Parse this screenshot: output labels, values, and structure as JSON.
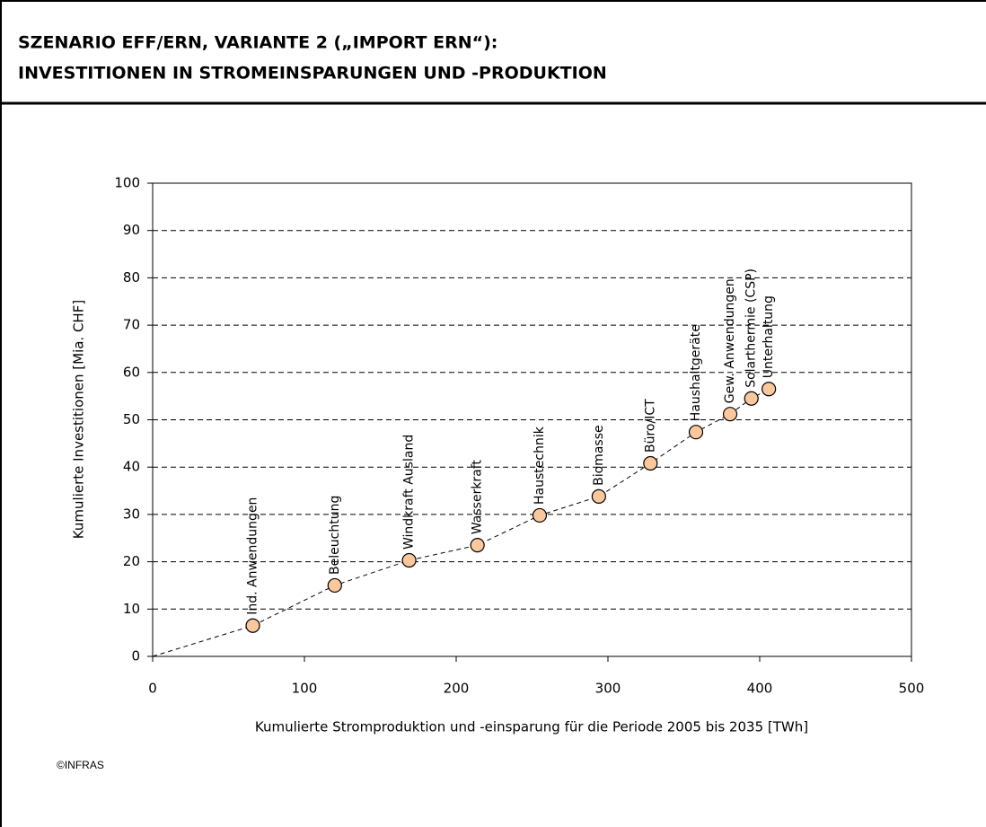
{
  "chart_data": {
    "type": "line",
    "title": [
      "SZENARIO EFF/ERN, VARIANTE 2 („IMPORT ERN“):",
      "INVESTITIONEN IN STROMEINSPARUNGEN UND -PRODUKTION"
    ],
    "xlabel": "Kumulierte Stromproduktion und -einsparung für die Periode 2005 bis 2035 [TWh]",
    "ylabel": "Kumulierte Investitionen  [Mia. CHF]",
    "source": "©INFRAS",
    "x": [
      66,
      120,
      169,
      214,
      255,
      294,
      328,
      358,
      380.5,
      394.5,
      406
    ],
    "values": [
      6.5,
      15,
      20.3,
      23.5,
      29.8,
      33.8,
      40.8,
      47.4,
      51.2,
      54.5,
      56.5
    ],
    "labels": [
      "Ind. Anwendungen",
      "Beleuchtung",
      "Windkraft Ausland",
      "Wasserkraft",
      "Haustechnik",
      "Biomasse",
      "Büro/ICT",
      "Haushaltgeräte",
      "Gew. Anwendungen",
      "Solarthermie (CSP)",
      "Unterhaltung"
    ],
    "color": "#fbc79c",
    "xlim": [
      0,
      500
    ],
    "ylim": [
      0,
      100
    ],
    "xticks": [
      0,
      100,
      200,
      300,
      400,
      500
    ],
    "yticks": [
      0,
      10,
      20,
      30,
      40,
      50,
      60,
      70,
      80,
      90,
      100
    ],
    "grid": true
  }
}
